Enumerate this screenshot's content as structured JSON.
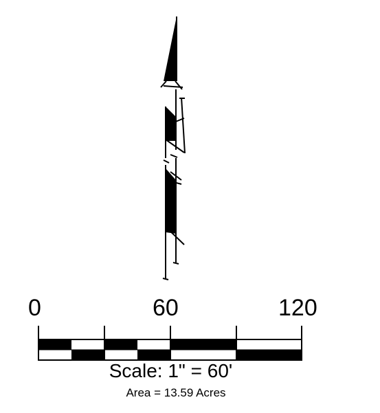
{
  "scale_bar": {
    "tick_labels": [
      "0",
      "60",
      "120"
    ],
    "scale_text": "Scale: 1\" = 60'",
    "area_text": "Area = 13.59 Acres"
  },
  "colors": {
    "ink": "#000000",
    "paper": "#ffffff"
  },
  "icons": {
    "north_arrow": "north-arrow-icon"
  }
}
